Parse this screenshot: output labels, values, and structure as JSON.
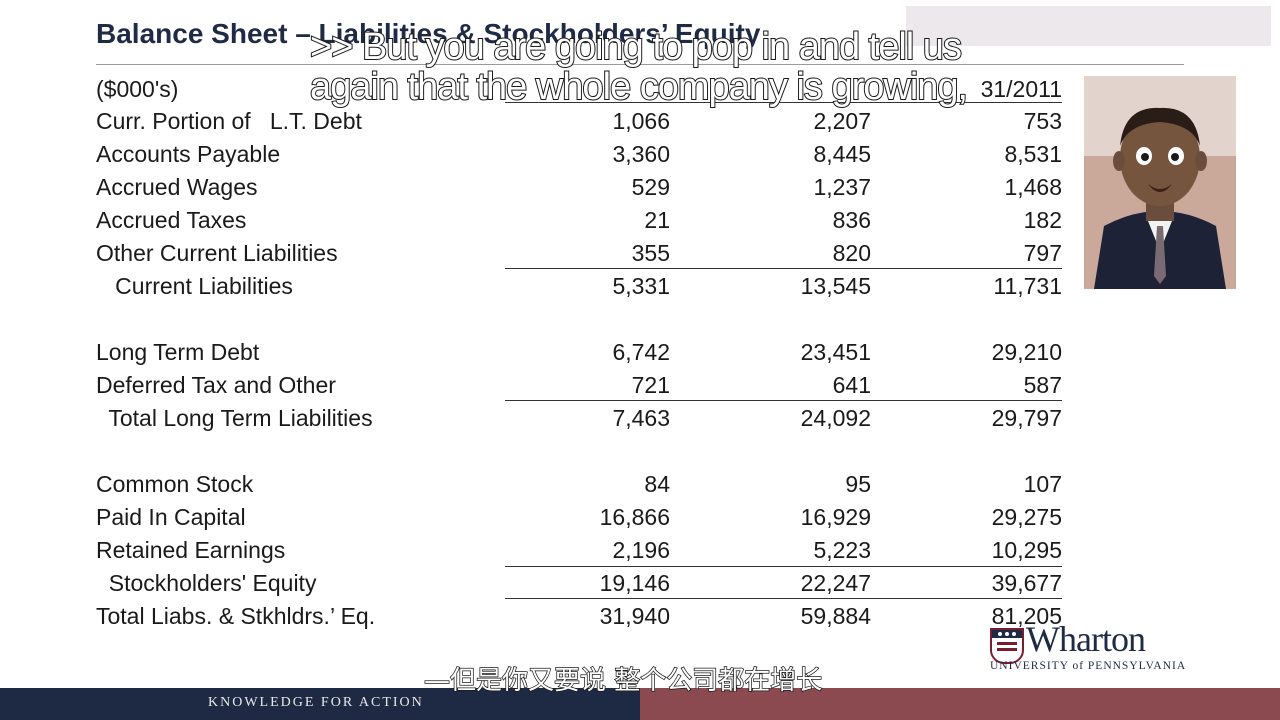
{
  "slide": {
    "title": "Balance Sheet – Liabilities & Stockholders’ Equity",
    "units": "($000's)",
    "header_year_visible": "31/2011",
    "rows": [
      {
        "label": "Curr. Portion of   L.T. Debt",
        "values": [
          "1,066",
          "2,207",
          "753"
        ]
      },
      {
        "label": "Accounts Payable",
        "values": [
          "3,360",
          "8,445",
          "8,531"
        ]
      },
      {
        "label": "Accrued Wages",
        "values": [
          "529",
          "1,237",
          "1,468"
        ]
      },
      {
        "label": "Accrued Taxes",
        "values": [
          "21",
          "836",
          "182"
        ]
      },
      {
        "label": "Other Current Liabilities",
        "values": [
          "355",
          "820",
          "797"
        ]
      },
      {
        "label": "   Current Liabilities",
        "values": [
          "5,331",
          "13,545",
          "11,731"
        ]
      },
      {
        "label": "Long Term Debt",
        "values": [
          "6,742",
          "23,451",
          "29,210"
        ]
      },
      {
        "label": "Deferred Tax and Other",
        "values": [
          "721",
          "641",
          "587"
        ]
      },
      {
        "label": "  Total Long Term Liabilities",
        "values": [
          "7,463",
          "24,092",
          "29,797"
        ]
      },
      {
        "label": "Common Stock",
        "values": [
          "84",
          "95",
          "107"
        ]
      },
      {
        "label": "Paid In Capital",
        "values": [
          "16,866",
          "16,929",
          "29,275"
        ]
      },
      {
        "label": "Retained Earnings",
        "values": [
          "2,196",
          "5,223",
          "10,295"
        ]
      },
      {
        "label": "  Stockholders' Equity",
        "values": [
          "19,146",
          "22,247",
          "39,677"
        ]
      },
      {
        "label": "Total Liabs. & Stkhldrs.’ Eq.",
        "values": [
          "31,940",
          "59,884",
          "81,205"
        ]
      }
    ]
  },
  "captions": {
    "line1": ">> But you are going to pop in and tell us",
    "line2": "again that the whole company is growing,",
    "chinese": "—但是你又要说 整个公司都在增长"
  },
  "branding": {
    "logo_word": "Wharton",
    "logo_sub": "UNIVERSITY of PENNSYLVANIA",
    "footer_tagline": "KNOWLEDGE FOR ACTION"
  }
}
